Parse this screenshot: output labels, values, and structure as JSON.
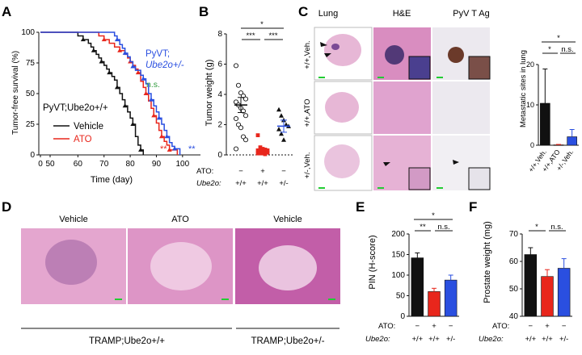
{
  "panels": {
    "A": "A",
    "B": "B",
    "C": "C",
    "D": "D",
    "E": "E",
    "F": "F"
  },
  "colors": {
    "vehicle": "#111111",
    "ato": "#e8261c",
    "het": "#2a4fe0",
    "legend_green": "#2e9a3c",
    "he_pink": "#d98dc0",
    "he_purple": "#3a2a6a",
    "ihc_bg": "#ece9ef",
    "ihc_brown": "#6b3a2a",
    "scalebar": "#22cc33"
  },
  "chart_data": [
    {
      "id": "A",
      "type": "line",
      "ylabel": "Tumor-free survival (%)",
      "xlabel": "Time (day)",
      "xticks": [
        "0",
        "50",
        "60",
        "70",
        "80",
        "90",
        "100"
      ],
      "yticks": [
        "0",
        "25",
        "50",
        "75",
        "100"
      ],
      "ylim": [
        0,
        100
      ],
      "xlim": [
        0,
        105
      ],
      "legend_title": "PyVT;Ube2o+/+",
      "het_label_line1": "PyVT;",
      "het_label_line2": "Ube2o+/-",
      "ns_label": "n.s.",
      "sig_ato": "**",
      "sig_het": "**",
      "series": [
        {
          "name": "Vehicle",
          "points": [
            [
              0,
              100
            ],
            [
              58,
              100
            ],
            [
              60,
              97
            ],
            [
              62,
              94
            ],
            [
              64,
              91
            ],
            [
              65,
              88
            ],
            [
              66,
              85
            ],
            [
              67,
              82
            ],
            [
              68,
              79
            ],
            [
              69,
              76
            ],
            [
              70,
              73
            ],
            [
              71,
              70
            ],
            [
              72,
              67
            ],
            [
              73,
              64
            ],
            [
              74,
              61
            ],
            [
              75,
              55
            ],
            [
              76,
              50
            ],
            [
              77,
              45
            ],
            [
              78,
              40
            ],
            [
              79,
              35
            ],
            [
              80,
              30
            ],
            [
              81,
              25
            ],
            [
              82,
              15
            ],
            [
              83,
              8
            ],
            [
              84,
              4
            ],
            [
              85,
              0
            ]
          ]
        },
        {
          "name": "ATO",
          "points": [
            [
              0,
              100
            ],
            [
              67,
              100
            ],
            [
              68,
              97
            ],
            [
              70,
              94
            ],
            [
              72,
              91
            ],
            [
              74,
              88
            ],
            [
              76,
              85
            ],
            [
              78,
              82
            ],
            [
              79,
              79
            ],
            [
              80,
              76
            ],
            [
              81,
              73
            ],
            [
              82,
              70
            ],
            [
              83,
              67
            ],
            [
              84,
              60
            ],
            [
              85,
              55
            ],
            [
              86,
              50
            ],
            [
              87,
              44
            ],
            [
              88,
              38
            ],
            [
              89,
              32
            ],
            [
              90,
              26
            ],
            [
              91,
              20
            ],
            [
              92,
              15
            ],
            [
              93,
              11
            ],
            [
              94,
              8
            ],
            [
              95,
              4
            ],
            [
              98,
              0
            ]
          ]
        },
        {
          "name": "Ube2o+/-",
          "points": [
            [
              0,
              100
            ],
            [
              72,
              100
            ],
            [
              74,
              97
            ],
            [
              75,
              94
            ],
            [
              76,
              90
            ],
            [
              77,
              87
            ],
            [
              78,
              83
            ],
            [
              79,
              80
            ],
            [
              80,
              76
            ],
            [
              81,
              72
            ],
            [
              82,
              69
            ],
            [
              84,
              65
            ],
            [
              85,
              62
            ],
            [
              86,
              58
            ],
            [
              87,
              50
            ],
            [
              88,
              45
            ],
            [
              89,
              40
            ],
            [
              90,
              35
            ],
            [
              91,
              30
            ],
            [
              92,
              25
            ],
            [
              93,
              20
            ],
            [
              94,
              15
            ],
            [
              95,
              10
            ],
            [
              96,
              7
            ],
            [
              97,
              5
            ],
            [
              99,
              0
            ]
          ]
        }
      ]
    },
    {
      "id": "B",
      "type": "scatter",
      "ylabel": "Tumor weight (g)",
      "yticks": [
        "0",
        "2",
        "4",
        "6",
        "8"
      ],
      "ylim": [
        0,
        8
      ],
      "row1_label": "ATO:",
      "row2_label": "Ube2o:",
      "groups": [
        {
          "ato": "−",
          "genotype": "+/+",
          "mean": 3.3,
          "sem": 0.5,
          "values": [
            5.9,
            4.6,
            4.1,
            3.9,
            3.7,
            3.5,
            3.3,
            3.1,
            2.9,
            2.6,
            2.4,
            2.0,
            1.8,
            1.2,
            1.0,
            0.4
          ]
        },
        {
          "ato": "+",
          "genotype": "+/+",
          "mean": 0.3,
          "sem": 0.1,
          "values": [
            1.3,
            0.5,
            0.4,
            0.35,
            0.3,
            0.3,
            0.25,
            0.2,
            0.2,
            0.15,
            0.1,
            0.1,
            0.1,
            0.05
          ]
        },
        {
          "ato": "−",
          "genotype": "+/-",
          "mean": 1.9,
          "sem": 0.4,
          "values": [
            3.0,
            2.6,
            2.3,
            2.0,
            1.9,
            1.7,
            1.4,
            1.0
          ]
        }
      ],
      "sig_top": "*",
      "sig_left": "***",
      "sig_right": "***"
    },
    {
      "id": "C",
      "type": "bar",
      "ylabel": "Metastatic sites in lung",
      "categories": [
        "+/+,Veh.",
        "+/+,ATO",
        "+/-,Veh."
      ],
      "values": [
        10.4,
        0.1,
        2.1
      ],
      "errors": [
        8.5,
        0.1,
        1.8
      ],
      "ylim": [
        0,
        20
      ],
      "yticks": [
        "0",
        "10",
        "20"
      ],
      "sig_top": "*",
      "sig_left": "*",
      "sig_right": "n.s."
    },
    {
      "id": "E",
      "type": "bar",
      "ylabel": "PIN (H-score)",
      "categories": [
        "+/+,−",
        "+/+,+",
        "+/-,−"
      ],
      "values": [
        142,
        60,
        88
      ],
      "errors": [
        12,
        8,
        12
      ],
      "ylim": [
        0,
        200
      ],
      "yticks": [
        "0",
        "50",
        "100",
        "150",
        "200"
      ],
      "row1_label": "ATO:",
      "row2_label": "Ube2o:",
      "ato": [
        "−",
        "+",
        "−"
      ],
      "genotype": [
        "+/+",
        "+/+",
        "+/-"
      ],
      "sig_top": "*",
      "sig_left": "**",
      "sig_right": "n.s."
    },
    {
      "id": "F",
      "type": "bar",
      "ylabel": "Prostate weight (mg)",
      "categories": [
        "+/+,−",
        "+/+,+",
        "+/-,−"
      ],
      "values": [
        62.5,
        54.5,
        57.5
      ],
      "errors": [
        2.5,
        2.5,
        3.5
      ],
      "ylim": [
        40,
        70
      ],
      "yticks": [
        "40",
        "50",
        "60",
        "70"
      ],
      "row1_label": "ATO:",
      "row2_label": "Ube2o:",
      "ato": [
        "−",
        "+",
        "−"
      ],
      "genotype": [
        "+/+",
        "+/+",
        "+/-"
      ],
      "sig_left": "*",
      "sig_right": "n.s."
    }
  ],
  "panelC": {
    "col_headers": [
      "Lung",
      "H&E",
      "PyV T Ag"
    ],
    "row_labels": [
      "+/+,Veh.",
      "+/+,ATO",
      "+/-,Veh."
    ]
  },
  "panelD": {
    "headers": [
      "Vehicle",
      "ATO",
      "Vehicle"
    ],
    "group_left": "TRAMP;Ube2o+/+",
    "group_right": "TRAMP;Ube2o+/-"
  }
}
